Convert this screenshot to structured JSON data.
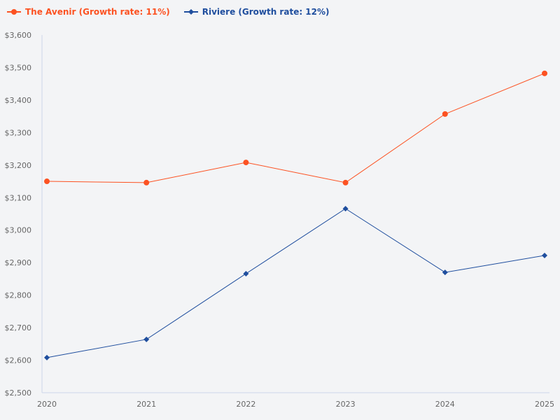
{
  "chart_data": {
    "type": "line",
    "x": [
      "2020",
      "2021",
      "2022",
      "2023",
      "2024",
      "2025"
    ],
    "ylim": [
      2500,
      3600
    ],
    "yticks": [
      "$2,500",
      "$2,600",
      "$2,700",
      "$2,800",
      "$2,900",
      "$3,000",
      "$3,100",
      "$3,200",
      "$3,300",
      "$3,400",
      "$3,500",
      "$3,600"
    ],
    "grid": false,
    "legend_position": "top-left",
    "series": [
      {
        "name": "The Avenir (Growth rate: 11%)",
        "color": "#fc5222",
        "marker": "circle",
        "values": [
          3150,
          3146,
          3208,
          3146,
          3357,
          3482
        ]
      },
      {
        "name": "Riviere (Growth rate: 12%)",
        "color": "#1f4e9e",
        "marker": "diamond",
        "values": [
          2608,
          2664,
          2866,
          3066,
          2870,
          2922
        ]
      }
    ]
  }
}
